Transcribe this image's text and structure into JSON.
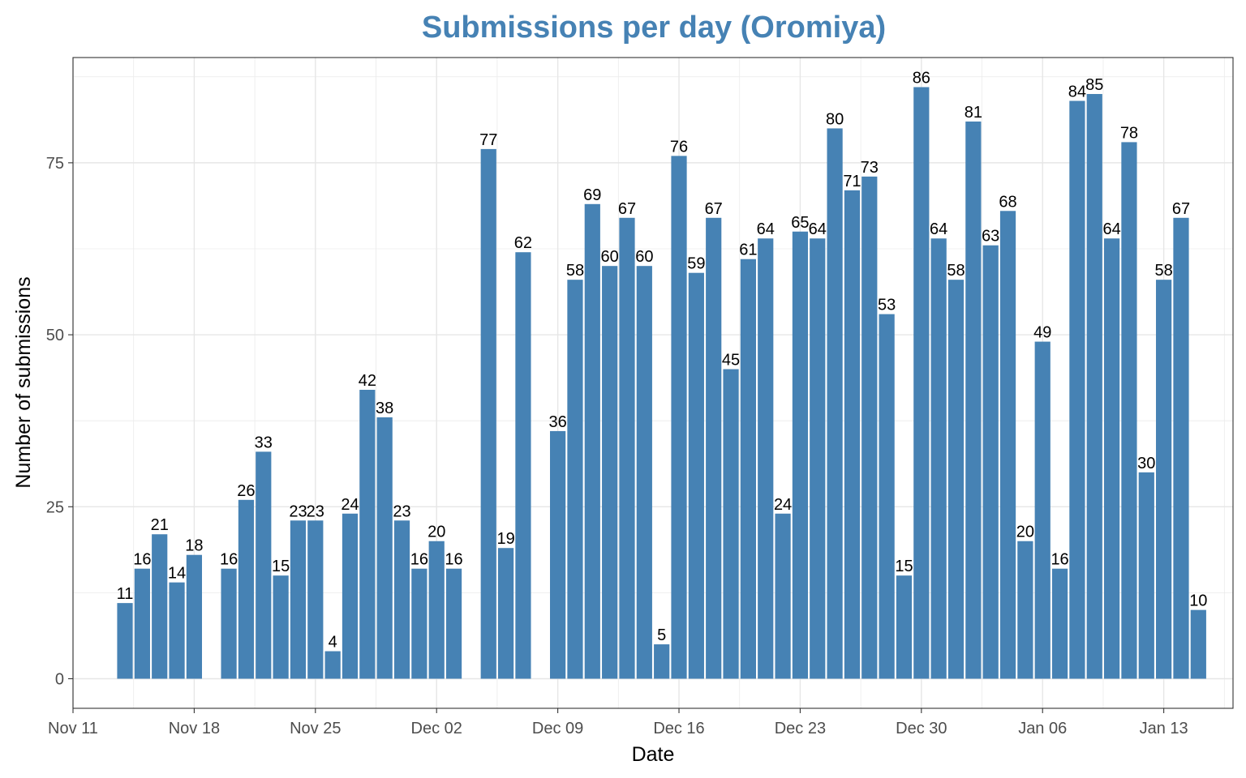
{
  "chart_data": {
    "type": "bar",
    "title": "Submissions per day (Oromiya)",
    "xlabel": "Date",
    "ylabel": "Number of submissions",
    "bar_color": "#4682B4",
    "title_color": "#4682B4",
    "grid": true,
    "ylim": [
      -4.3,
      90.3
    ],
    "y_ticks": [
      0,
      25,
      50,
      75
    ],
    "y_tick_labels": [
      "0",
      "25",
      "50",
      "75"
    ],
    "xlim": [
      "2018-11-11",
      "2019-01-17"
    ],
    "x_ticks": [
      "2018-11-11",
      "2018-11-18",
      "2018-11-25",
      "2018-12-02",
      "2018-12-09",
      "2018-12-16",
      "2018-12-23",
      "2018-12-30",
      "2019-01-06",
      "2019-01-13"
    ],
    "x_tick_labels": [
      "Nov 11",
      "Nov 18",
      "Nov 25",
      "Dec 02",
      "Dec 09",
      "Dec 16",
      "Dec 23",
      "Dec 30",
      "Jan 06",
      "Jan 13"
    ],
    "points": [
      {
        "date": "2018-11-14",
        "value": 11
      },
      {
        "date": "2018-11-15",
        "value": 16
      },
      {
        "date": "2018-11-16",
        "value": 21
      },
      {
        "date": "2018-11-17",
        "value": 14
      },
      {
        "date": "2018-11-18",
        "value": 18
      },
      {
        "date": "2018-11-20",
        "value": 16
      },
      {
        "date": "2018-11-21",
        "value": 26
      },
      {
        "date": "2018-11-22",
        "value": 33
      },
      {
        "date": "2018-11-23",
        "value": 15
      },
      {
        "date": "2018-11-24",
        "value": 23
      },
      {
        "date": "2018-11-25",
        "value": 23
      },
      {
        "date": "2018-11-26",
        "value": 4
      },
      {
        "date": "2018-11-27",
        "value": 24
      },
      {
        "date": "2018-11-28",
        "value": 42
      },
      {
        "date": "2018-11-29",
        "value": 38
      },
      {
        "date": "2018-11-30",
        "value": 23
      },
      {
        "date": "2018-12-01",
        "value": 16
      },
      {
        "date": "2018-12-02",
        "value": 20
      },
      {
        "date": "2018-12-03",
        "value": 16
      },
      {
        "date": "2018-12-05",
        "value": 77
      },
      {
        "date": "2018-12-06",
        "value": 19
      },
      {
        "date": "2018-12-07",
        "value": 62
      },
      {
        "date": "2018-12-09",
        "value": 36
      },
      {
        "date": "2018-12-10",
        "value": 58
      },
      {
        "date": "2018-12-11",
        "value": 69
      },
      {
        "date": "2018-12-12",
        "value": 60
      },
      {
        "date": "2018-12-13",
        "value": 67
      },
      {
        "date": "2018-12-14",
        "value": 60
      },
      {
        "date": "2018-12-15",
        "value": 5
      },
      {
        "date": "2018-12-16",
        "value": 76
      },
      {
        "date": "2018-12-17",
        "value": 59
      },
      {
        "date": "2018-12-18",
        "value": 67
      },
      {
        "date": "2018-12-19",
        "value": 45
      },
      {
        "date": "2018-12-20",
        "value": 61
      },
      {
        "date": "2018-12-21",
        "value": 64
      },
      {
        "date": "2018-12-22",
        "value": 24
      },
      {
        "date": "2018-12-23",
        "value": 65
      },
      {
        "date": "2018-12-24",
        "value": 64
      },
      {
        "date": "2018-12-25",
        "value": 80
      },
      {
        "date": "2018-12-26",
        "value": 71
      },
      {
        "date": "2018-12-27",
        "value": 73
      },
      {
        "date": "2018-12-28",
        "value": 53
      },
      {
        "date": "2018-12-29",
        "value": 15
      },
      {
        "date": "2018-12-30",
        "value": 86
      },
      {
        "date": "2018-12-31",
        "value": 64
      },
      {
        "date": "2019-01-01",
        "value": 58
      },
      {
        "date": "2019-01-02",
        "value": 81
      },
      {
        "date": "2019-01-03",
        "value": 63
      },
      {
        "date": "2019-01-04",
        "value": 68
      },
      {
        "date": "2019-01-05",
        "value": 20
      },
      {
        "date": "2019-01-06",
        "value": 49
      },
      {
        "date": "2019-01-07",
        "value": 16
      },
      {
        "date": "2019-01-08",
        "value": 84
      },
      {
        "date": "2019-01-09",
        "value": 85
      },
      {
        "date": "2019-01-10",
        "value": 64
      },
      {
        "date": "2019-01-11",
        "value": 78
      },
      {
        "date": "2019-01-12",
        "value": 30
      },
      {
        "date": "2019-01-13",
        "value": 58
      },
      {
        "date": "2019-01-14",
        "value": 67
      },
      {
        "date": "2019-01-15",
        "value": 10
      }
    ]
  }
}
